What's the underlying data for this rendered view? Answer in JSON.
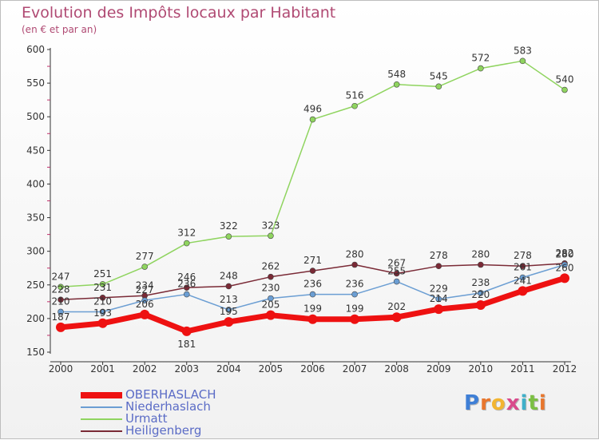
{
  "header": {
    "title": "Evolution des Impôts locaux par Habitant",
    "subtitle": "(en € et par an)"
  },
  "logo": {
    "text": "Proxiti",
    "letters": [
      "P",
      "r",
      "o",
      "x",
      "i",
      "t",
      "i"
    ],
    "colors": [
      "#3f7fd6",
      "#e8762d",
      "#f2b531",
      "#d94a8c",
      "#3fb0c9",
      "#7bbf43",
      "#e8762d"
    ]
  },
  "chart_data": {
    "type": "line",
    "title": "Evolution des Impôts locaux par Habitant",
    "subtitle": "(en € et par an)",
    "xlabel": "",
    "ylabel": "",
    "x": [
      2000,
      2001,
      2002,
      2003,
      2004,
      2005,
      2006,
      2007,
      2008,
      2009,
      2010,
      2011,
      2012
    ],
    "ylim": [
      150,
      600
    ],
    "yticks": [
      150,
      200,
      250,
      300,
      350,
      400,
      450,
      500,
      550,
      600
    ],
    "grid": false,
    "legend_position": "bottom-left",
    "series": [
      {
        "name": "Urmatt",
        "color": "#8fd45f",
        "values": [
          247,
          251,
          277,
          312,
          322,
          323,
          496,
          516,
          548,
          545,
          572,
          583,
          540
        ]
      },
      {
        "name": "Heiligenberg",
        "color": "#7a2a36",
        "values": [
          228,
          231,
          234,
          246,
          248,
          262,
          271,
          280,
          267,
          278,
          280,
          278,
          282
        ]
      },
      {
        "name": "Niederhaslach",
        "color": "#6b9ed3",
        "values": [
          210,
          210,
          227,
          236,
          213,
          230,
          236,
          236,
          255,
          229,
          238,
          261,
          280
        ]
      },
      {
        "name": "OBERHASLACH",
        "color": "#ee1111",
        "values": [
          187,
          193,
          206,
          181,
          195,
          205,
          199,
          199,
          202,
          214,
          220,
          241,
          260
        ]
      }
    ],
    "legend_order": [
      "OBERHASLACH",
      "Niederhaslach",
      "Urmatt",
      "Heiligenberg"
    ]
  }
}
